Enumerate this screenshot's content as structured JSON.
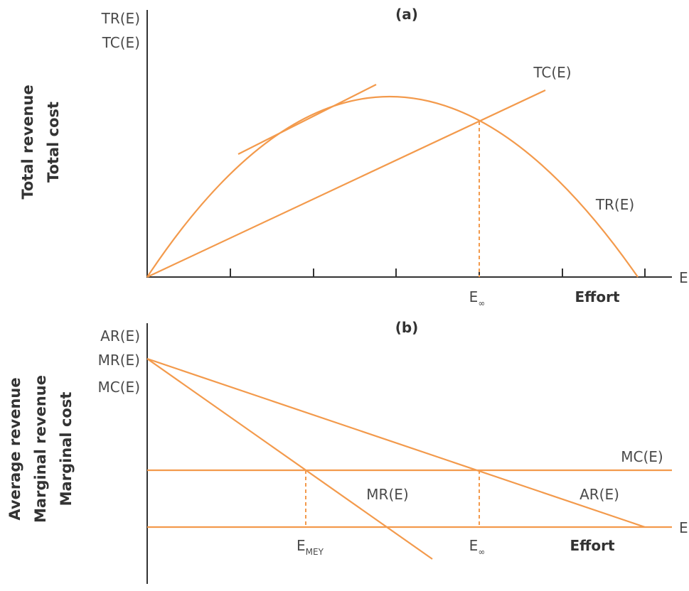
{
  "panel_a": {
    "title": "(a)",
    "y_axis_labels": [
      "TR(E)",
      "TC(E)"
    ],
    "y_title_lines": [
      "Total revenue",
      "Total cost"
    ],
    "x_end_label": "E",
    "x_title": "Effort",
    "e_inf_main": "E",
    "e_inf_sub": "∞",
    "tc_label": "TC(E)",
    "tr_label": "TR(E)"
  },
  "panel_b": {
    "title": "(b)",
    "y_axis_labels": [
      "AR(E)",
      "MR(E)",
      "MC(E)"
    ],
    "y_title_lines": [
      "Average revenue",
      "Marginal revenue",
      "Marginal cost"
    ],
    "x_end_label": "E",
    "x_title": "Effort",
    "e_mey_main": "E",
    "e_mey_sub": "MEY",
    "e_inf_main": "E",
    "e_inf_sub": "∞",
    "mc_label": "MC(E)",
    "mr_label": "MR(E)",
    "ar_label": "AR(E)"
  },
  "colors": {
    "curve": "#f39a4c",
    "axis": "#333333",
    "text": "#4a4a4a"
  }
}
